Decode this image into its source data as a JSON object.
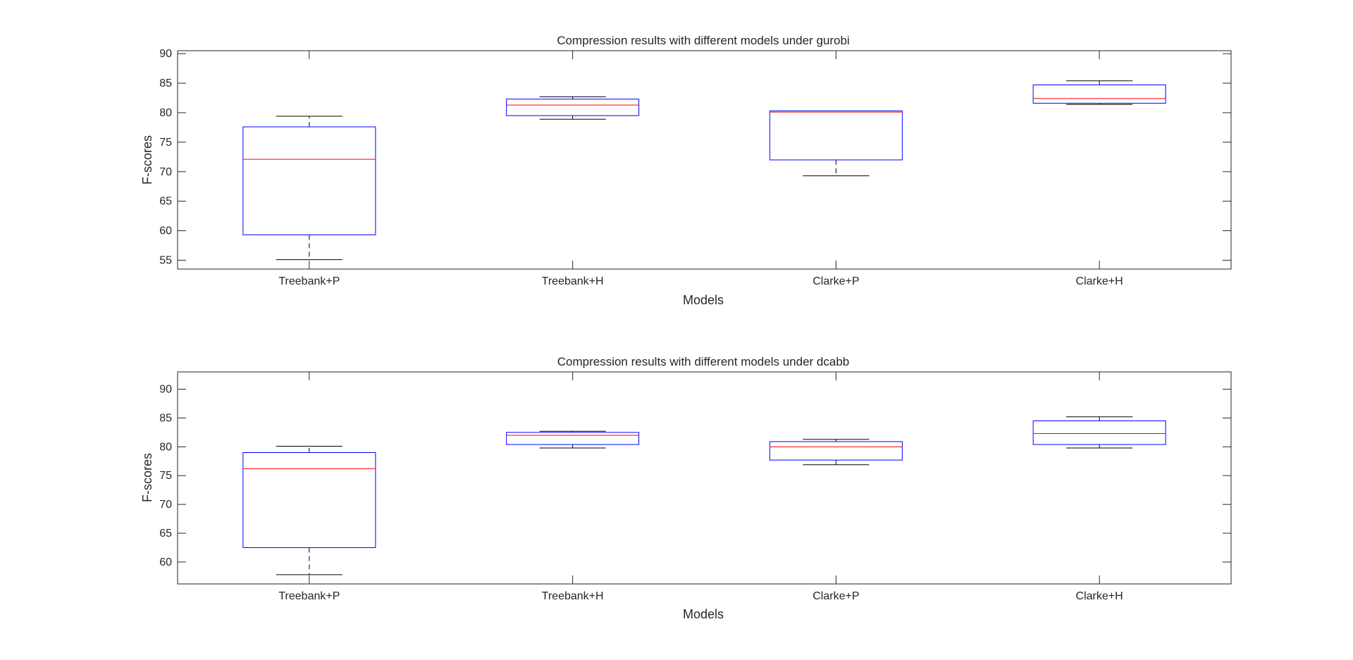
{
  "colors": {
    "box": "#0000ff",
    "median": "#ff0000",
    "whisker": "#000000",
    "axes": "#262626",
    "background": "#ffffff"
  },
  "chart_data": [
    {
      "type": "boxplot",
      "title": "Compression results with different models under gurobi",
      "xlabel": "Models",
      "ylabel": "F-scores",
      "categories": [
        "Treebank+P",
        "Treebank+H",
        "Clarke+P",
        "Clarke+H"
      ],
      "ylim": [
        53.5,
        90.5
      ],
      "yticks": [
        55,
        60,
        65,
        70,
        75,
        80,
        85,
        90
      ],
      "grid": false,
      "boxes": [
        {
          "min": 55.1,
          "q1": 59.3,
          "median": 72.1,
          "q3": 77.6,
          "max": 79.4
        },
        {
          "min": 78.9,
          "q1": 79.5,
          "median": 81.3,
          "q3": 82.3,
          "max": 82.7
        },
        {
          "min": 69.3,
          "q1": 72.0,
          "median": 80.1,
          "q3": 80.3,
          "max": 80.3
        },
        {
          "min": 81.4,
          "q1": 81.6,
          "median": 82.4,
          "q3": 84.7,
          "max": 85.4
        }
      ]
    },
    {
      "type": "boxplot",
      "title": "Compression results with different models under dcabb",
      "xlabel": "Models",
      "ylabel": "F-scores",
      "categories": [
        "Treebank+P",
        "Treebank+H",
        "Clarke+P",
        "Clarke+H"
      ],
      "ylim": [
        56.2,
        93.0
      ],
      "yticks": [
        60,
        65,
        70,
        75,
        80,
        85,
        90
      ],
      "grid": false,
      "boxes": [
        {
          "min": 57.8,
          "q1": 62.5,
          "median": 76.2,
          "q3": 79.0,
          "max": 80.1
        },
        {
          "min": 79.8,
          "q1": 80.4,
          "median": 82.0,
          "q3": 82.5,
          "max": 82.7
        },
        {
          "min": 76.9,
          "q1": 77.7,
          "median": 80.0,
          "q3": 80.9,
          "max": 81.3
        },
        {
          "min": 79.8,
          "q1": 80.4,
          "median": 82.3,
          "q3": 84.5,
          "max": 85.2
        }
      ]
    }
  ]
}
